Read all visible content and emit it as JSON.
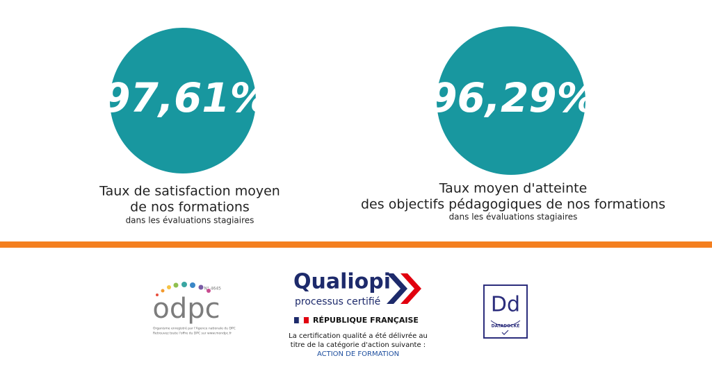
{
  "stats": [
    {
      "value": "97,61%",
      "lines": [
        "Taux de satisfaction moyen",
        "de nos formations"
      ],
      "note": "dans les évaluations stagiaires"
    },
    {
      "value": "96,29%",
      "lines": [
        "Taux moyen d'atteinte",
        "des objectifs pédagogiques de nos formations"
      ],
      "note": "dans les évaluations stagiaires"
    }
  ],
  "logos": {
    "odpc": {
      "name": "odpc",
      "number": "N° 4645",
      "lines": [
        "Organisme enregistré par l'Agence nationale du DPC",
        "Retrouvez toute l'offre du DPC sur www.mondpc.fr"
      ]
    },
    "qualiopi": {
      "name": "Qualiopi",
      "subtitle": "processus certifié",
      "republic": "RÉPUBLIQUE FRANÇAISE",
      "lines": [
        "La certification qualité a été délivrée au",
        "titre de la catégorie d'action suivante :"
      ],
      "category": "ACTION DE FORMATION"
    },
    "datadock": {
      "mark": "Dd",
      "label": "DATADOCKÉ"
    }
  }
}
